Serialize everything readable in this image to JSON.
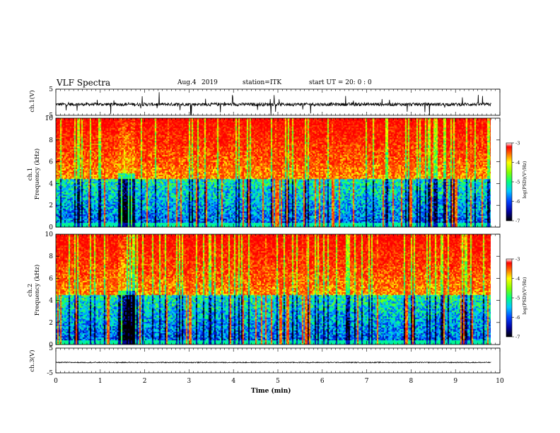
{
  "header": {
    "title": "VLF Spectra",
    "date": "Aug.4",
    "year": "2019",
    "station": "station=ITK",
    "start": "start UT =  20: 0  : 0"
  },
  "chart_data": [
    {
      "type": "line",
      "name": "ch1-waveform",
      "ylabel": "ch.1(V)",
      "ylim": [
        -5,
        5
      ],
      "yticks": [
        "5",
        "-5"
      ],
      "baseline": -0.8,
      "noise": "high-amplitude impulsive (sferics)",
      "x_range_min": [
        0,
        9.8
      ]
    },
    {
      "type": "heatmap",
      "name": "ch1-spectrogram",
      "ylabel": "ch.1\nFrequency (kHz)",
      "ylim": [
        0,
        10
      ],
      "yticks": [
        "0",
        "2",
        "4",
        "6",
        "8",
        "10"
      ],
      "colorbar": {
        "label": "log(PSD)(V²/Hz)",
        "range": [
          -7,
          -3
        ],
        "ticks": [
          "-3",
          "-4",
          "-5",
          "-6",
          "-7"
        ]
      },
      "x_range_min": [
        0,
        9.8
      ]
    },
    {
      "type": "heatmap",
      "name": "ch2-spectrogram",
      "ylabel": "ch.2\nFrequency (kHz)",
      "ylim": [
        0,
        10
      ],
      "yticks": [
        "0",
        "2",
        "4",
        "6",
        "8",
        "10"
      ],
      "colorbar": {
        "label": "log(PSD)(V²/Hz)",
        "range": [
          -7,
          -3
        ],
        "ticks": [
          "-3",
          "-4",
          "-5",
          "-6",
          "-7"
        ]
      },
      "x_range_min": [
        0,
        9.8
      ]
    },
    {
      "type": "line",
      "name": "ch3-waveform",
      "ylabel": "ch.3(V)",
      "ylim": [
        -5,
        5
      ],
      "yticks": [
        "5",
        "-5"
      ],
      "baseline": -0.8,
      "noise": "low",
      "x_range_min": [
        0,
        9.8
      ]
    }
  ],
  "xaxis": {
    "label": "Time (min)",
    "range": [
      0,
      10
    ],
    "ticks": [
      "0",
      "1",
      "2",
      "3",
      "4",
      "5",
      "6",
      "7",
      "8",
      "9",
      "10"
    ]
  }
}
